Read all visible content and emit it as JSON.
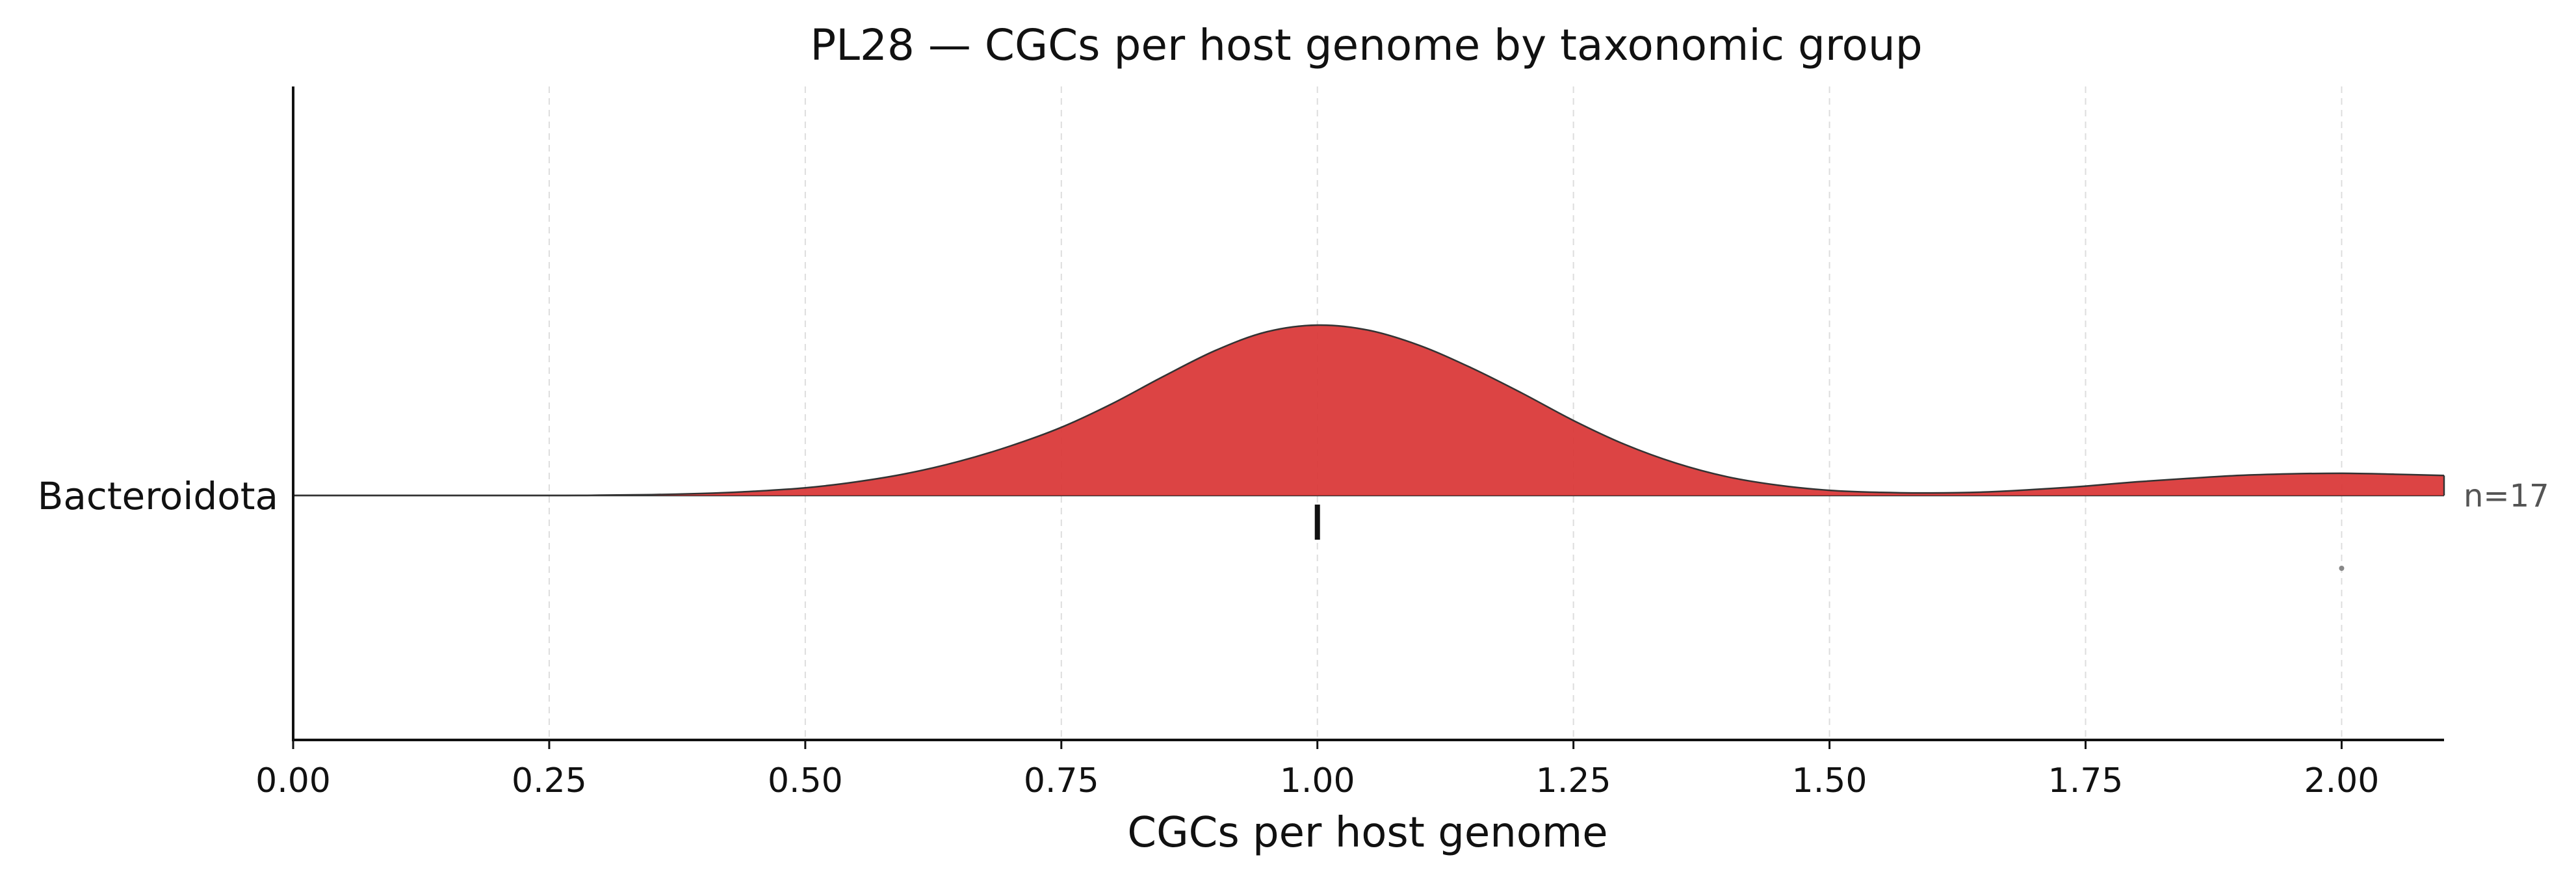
{
  "chart_data": {
    "type": "ridgeline",
    "title": "PL28 — CGCs per host genome by taxonomic group",
    "xlabel": "CGCs per host genome",
    "ylabel": "",
    "xlim": [
      0,
      2.1
    ],
    "xticks": [
      0,
      0.25,
      0.5,
      0.75,
      1.0,
      1.25,
      1.5,
      1.75,
      2.0
    ],
    "xtick_labels": [
      "0.00",
      "0.25",
      "0.50",
      "0.75",
      "1.00",
      "1.25",
      "1.50",
      "1.75",
      "2.00"
    ],
    "grid": "x, dashed",
    "colors": {
      "fill": "#d93636",
      "outline": "#333333",
      "median_marker": "#111111",
      "outlier": "#888888"
    },
    "series": [
      {
        "name": "Bacteroidota",
        "n_label": "n=17",
        "density_x": [
          0.0,
          0.25,
          0.3,
          0.35,
          0.4,
          0.45,
          0.5,
          0.55,
          0.6,
          0.65,
          0.7,
          0.75,
          0.8,
          0.85,
          0.9,
          0.95,
          1.0,
          1.05,
          1.1,
          1.15,
          1.2,
          1.25,
          1.3,
          1.35,
          1.4,
          1.45,
          1.5,
          1.55,
          1.6,
          1.65,
          1.7,
          1.75,
          1.8,
          1.85,
          1.9,
          1.95,
          2.0,
          2.05,
          2.1
        ],
        "density_y": [
          0.0,
          0.0,
          0.002,
          0.005,
          0.012,
          0.025,
          0.045,
          0.08,
          0.13,
          0.2,
          0.29,
          0.4,
          0.54,
          0.7,
          0.85,
          0.96,
          1.0,
          0.97,
          0.88,
          0.75,
          0.6,
          0.44,
          0.3,
          0.19,
          0.11,
          0.06,
          0.03,
          0.018,
          0.015,
          0.02,
          0.035,
          0.055,
          0.08,
          0.1,
          0.118,
          0.127,
          0.13,
          0.125,
          0.117
        ],
        "median": 1.0,
        "outliers": [
          2.0
        ]
      }
    ]
  }
}
